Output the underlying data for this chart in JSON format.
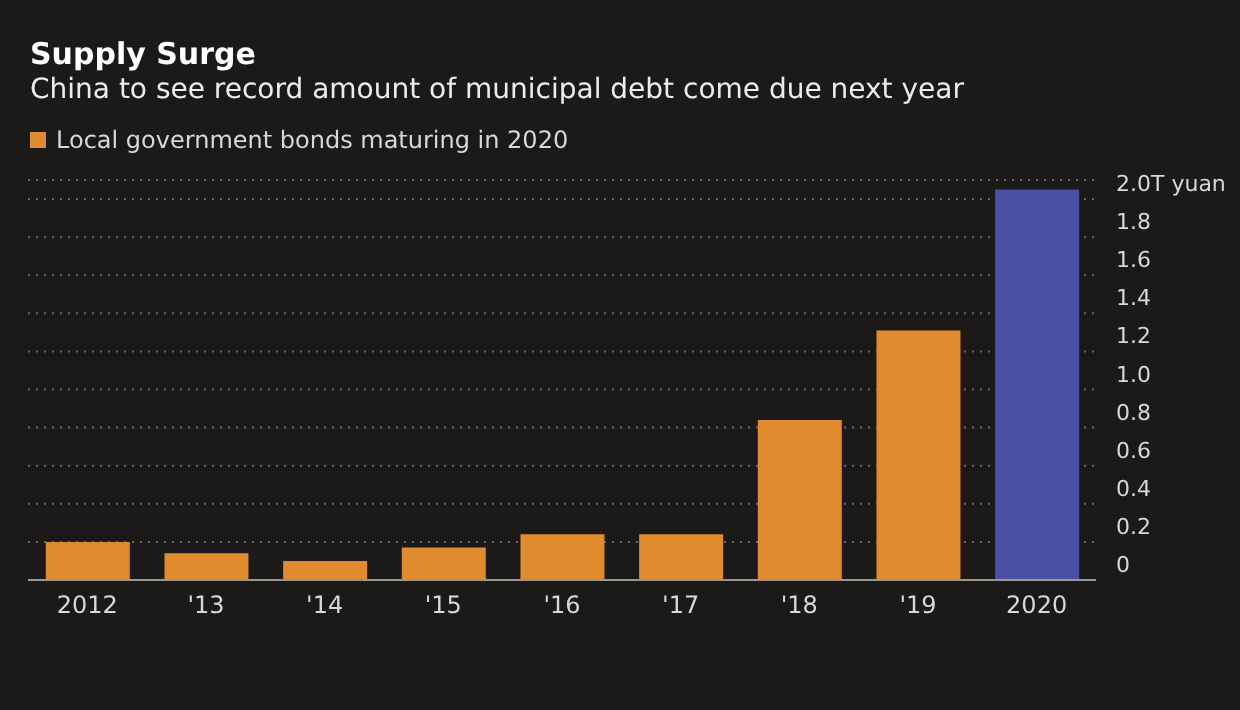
{
  "chart_data": {
    "type": "bar",
    "title": "Supply Surge",
    "subtitle": "China to see record amount of municipal debt come due next year",
    "categories": [
      "2012",
      "'13",
      "'14",
      "'15",
      "'16",
      "'17",
      "'18",
      "'19",
      "2020"
    ],
    "series": [
      {
        "name": "Local government bonds maturing in 2020",
        "color": "#e08c2e",
        "colors": [
          "#e08c2e",
          "#e08c2e",
          "#e08c2e",
          "#e08c2e",
          "#e08c2e",
          "#e08c2e",
          "#e08c2e",
          "#e08c2e",
          "#4a4fa3"
        ],
        "values": [
          0.2,
          0.14,
          0.1,
          0.17,
          0.24,
          0.24,
          0.84,
          1.31,
          2.05
        ]
      }
    ],
    "ylim": [
      0,
      2.1
    ],
    "yticks": [
      0,
      0.2,
      0.4,
      0.6,
      0.8,
      {
        "value": 1.0,
        "label": "1.0"
      },
      1.2,
      1.4,
      1.6,
      1.8,
      {
        "value": 2.0,
        "label": "2.0T yuan"
      }
    ],
    "grid": "y",
    "legend": "top left"
  }
}
